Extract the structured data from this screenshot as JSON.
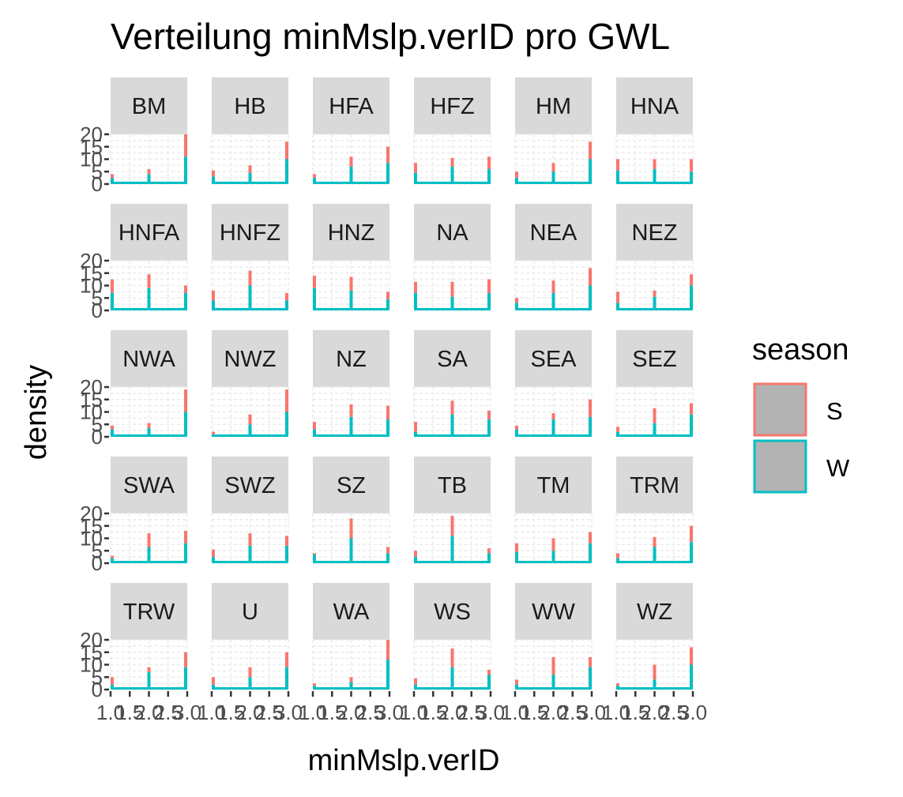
{
  "chart_data": {
    "type": "histogram-facets",
    "title": "Verteilung minMslp.verID pro GWL",
    "xlabel": "minMslp.verID",
    "ylabel": "density",
    "x_ticks": [
      "1.0",
      "1.5",
      "2.0",
      "2.5",
      "3.0"
    ],
    "y_ticks": [
      "0",
      "5",
      "10",
      "15",
      "20"
    ],
    "ylim": [
      0,
      20
    ],
    "xlim": [
      1.0,
      3.0
    ],
    "legend": {
      "title": "season",
      "placement": "right",
      "entries": [
        {
          "label": "S",
          "color": "#f8766d"
        },
        {
          "label": "W",
          "color": "#00bfc4"
        }
      ]
    },
    "x_bins": [
      1.0,
      2.0,
      3.0
    ],
    "panels": [
      {
        "name": "BM",
        "W": [
          2.5,
          4,
          11
        ],
        "S": [
          1.5,
          2,
          9
        ]
      },
      {
        "name": "HB",
        "W": [
          3,
          4.5,
          10
        ],
        "S": [
          2.5,
          3,
          7
        ]
      },
      {
        "name": "HFA",
        "W": [
          2.5,
          7,
          8.5
        ],
        "S": [
          1.5,
          4,
          6.5
        ]
      },
      {
        "name": "HFZ",
        "W": [
          4.5,
          7,
          6
        ],
        "S": [
          4,
          3.5,
          5
        ]
      },
      {
        "name": "HM",
        "W": [
          2.5,
          5,
          10
        ],
        "S": [
          2.5,
          3.5,
          7
        ]
      },
      {
        "name": "HNA",
        "W": [
          5.5,
          6,
          5
        ],
        "S": [
          4.5,
          4,
          5
        ]
      },
      {
        "name": "HNFA",
        "W": [
          7,
          9,
          7
        ],
        "S": [
          5.5,
          5.5,
          3
        ]
      },
      {
        "name": "HNFZ",
        "W": [
          4,
          10,
          4
        ],
        "S": [
          4,
          6,
          3
        ]
      },
      {
        "name": "HNZ",
        "W": [
          9,
          8,
          4.5
        ],
        "S": [
          5,
          5.5,
          3
        ]
      },
      {
        "name": "NA",
        "W": [
          7,
          5.5,
          7
        ],
        "S": [
          4.5,
          6,
          5.5
        ]
      },
      {
        "name": "NEA",
        "W": [
          3,
          7,
          10
        ],
        "S": [
          2,
          5,
          7
        ]
      },
      {
        "name": "NEZ",
        "W": [
          3,
          5.5,
          10
        ],
        "S": [
          4.5,
          2.5,
          4.5
        ]
      },
      {
        "name": "NWA",
        "W": [
          3,
          3.5,
          10
        ],
        "S": [
          1.5,
          2,
          9
        ]
      },
      {
        "name": "NWZ",
        "W": [
          1,
          5,
          10
        ],
        "S": [
          1,
          4,
          9
        ]
      },
      {
        "name": "NZ",
        "W": [
          3,
          8,
          7
        ],
        "S": [
          3,
          5,
          5.5
        ]
      },
      {
        "name": "SA",
        "W": [
          2,
          9,
          7
        ],
        "S": [
          4,
          5.5,
          3.5
        ]
      },
      {
        "name": "SEA",
        "W": [
          3,
          7,
          8
        ],
        "S": [
          1.5,
          2.5,
          7
        ]
      },
      {
        "name": "SEZ",
        "W": [
          2,
          5.5,
          9
        ],
        "S": [
          2,
          6,
          4.5
        ]
      },
      {
        "name": "SWA",
        "W": [
          2,
          6.5,
          8
        ],
        "S": [
          1,
          5.5,
          5
        ]
      },
      {
        "name": "SWZ",
        "W": [
          2.5,
          7,
          7
        ],
        "S": [
          3,
          5,
          4
        ]
      },
      {
        "name": "SZ",
        "W": [
          3.5,
          10,
          4
        ],
        "S": [
          0.5,
          8,
          2.5
        ]
      },
      {
        "name": "TB",
        "W": [
          2.5,
          11,
          4
        ],
        "S": [
          2.5,
          8,
          2
        ]
      },
      {
        "name": "TM",
        "W": [
          4.5,
          5,
          8
        ],
        "S": [
          3.5,
          5,
          4.5
        ]
      },
      {
        "name": "TRM",
        "W": [
          2,
          6.5,
          8.5
        ],
        "S": [
          2,
          4,
          6.5
        ]
      },
      {
        "name": "TRW",
        "W": [
          2,
          7,
          9
        ],
        "S": [
          3,
          2,
          6
        ]
      },
      {
        "name": "U",
        "W": [
          2,
          5,
          9
        ],
        "S": [
          3,
          4,
          6
        ]
      },
      {
        "name": "WA",
        "W": [
          1.5,
          3,
          12
        ],
        "S": [
          1,
          2,
          8
        ]
      },
      {
        "name": "WS",
        "W": [
          2,
          9,
          6
        ],
        "S": [
          2.5,
          7.5,
          2
        ]
      },
      {
        "name": "WW",
        "W": [
          2,
          6,
          9
        ],
        "S": [
          2,
          7,
          4
        ]
      },
      {
        "name": "WZ",
        "W": [
          1.5,
          4,
          10
        ],
        "S": [
          1,
          6,
          7
        ]
      }
    ]
  }
}
